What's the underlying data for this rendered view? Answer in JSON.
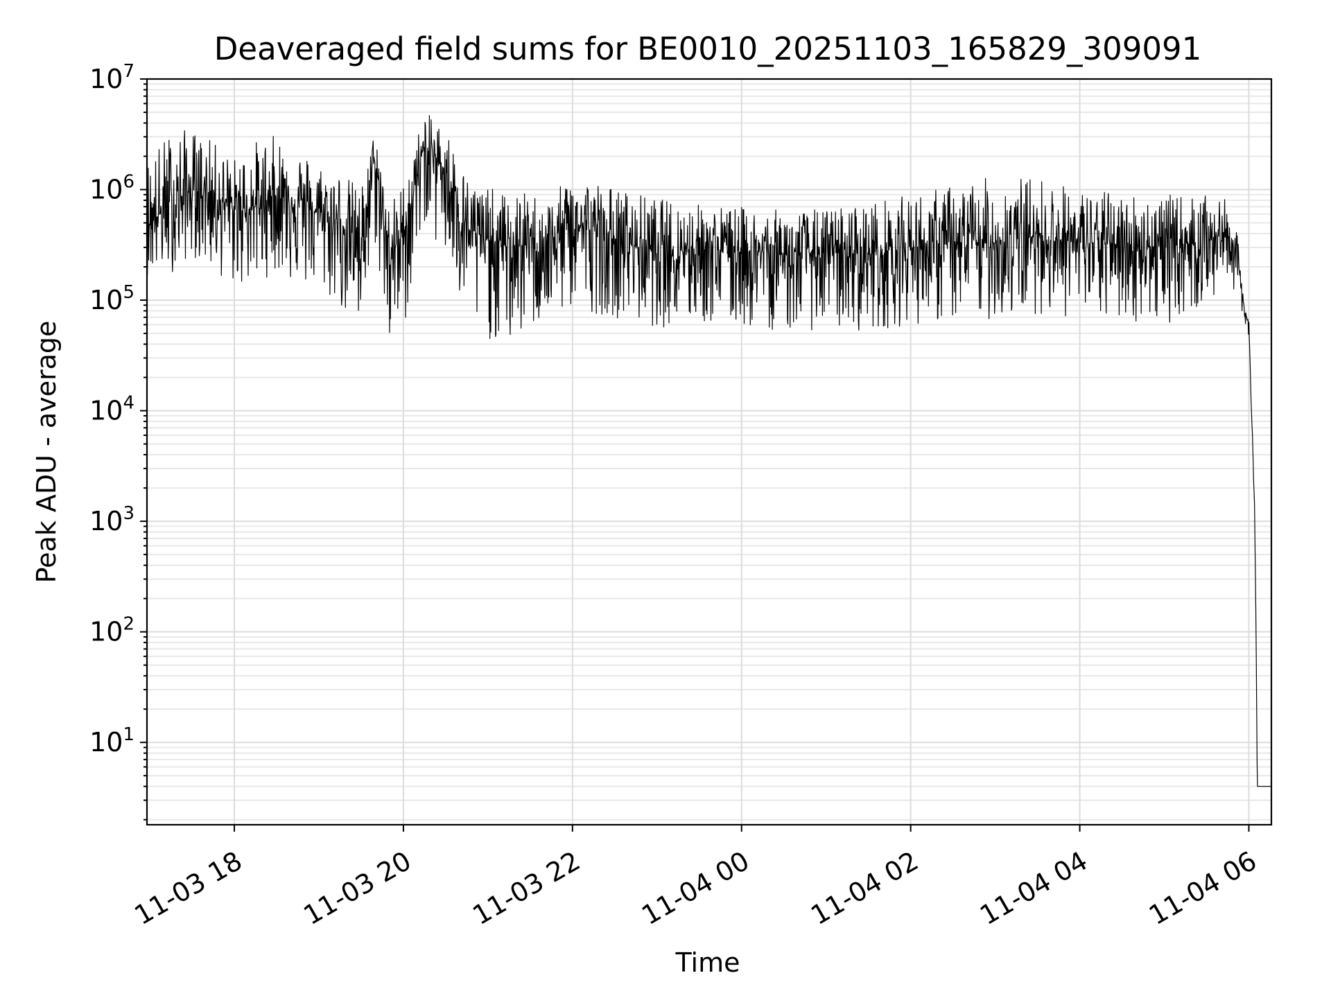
{
  "chart_data": {
    "type": "line",
    "title": "Deaveraged field sums for BE0010_20251103_165829_309091",
    "xlabel": "Time",
    "ylabel": "Peak ADU - average",
    "xscale": "time",
    "yscale": "log",
    "grid": "on (major and minor)",
    "xlim": [
      "2025-11-03 16:58",
      "2025-11-04 06:16"
    ],
    "ylim": [
      1.8,
      10000000
    ],
    "x_tick_labels": [
      "11-03 18",
      "11-03 20",
      "11-03 22",
      "11-04 00",
      "11-04 02",
      "11-04 04",
      "11-04 06"
    ],
    "y_tick_labels": [
      {
        "base": "10",
        "exp": "1"
      },
      {
        "base": "10",
        "exp": "2"
      },
      {
        "base": "10",
        "exp": "3"
      },
      {
        "base": "10",
        "exp": "4"
      },
      {
        "base": "10",
        "exp": "5"
      },
      {
        "base": "10",
        "exp": "6"
      },
      {
        "base": "10",
        "exp": "7"
      }
    ],
    "series": [
      {
        "color": "#000000",
        "x": [
          "2025-11-03 16:58",
          "2025-11-03 17:15",
          "2025-11-03 17:30",
          "2025-11-03 17:45",
          "2025-11-03 18:00",
          "2025-11-03 18:15",
          "2025-11-03 18:30",
          "2025-11-03 18:45",
          "2025-11-03 19:00",
          "2025-11-03 19:15",
          "2025-11-03 19:30",
          "2025-11-03 19:40",
          "2025-11-03 19:50",
          "2025-11-03 20:00",
          "2025-11-03 20:15",
          "2025-11-03 20:30",
          "2025-11-03 20:45",
          "2025-11-03 21:00",
          "2025-11-03 21:15",
          "2025-11-03 21:30",
          "2025-11-03 21:45",
          "2025-11-03 22:00",
          "2025-11-03 22:30",
          "2025-11-03 23:00",
          "2025-11-03 23:30",
          "2025-11-04 00:00",
          "2025-11-04 00:30",
          "2025-11-04 01:00",
          "2025-11-04 01:30",
          "2025-11-04 02:00",
          "2025-11-04 02:30",
          "2025-11-04 03:00",
          "2025-11-04 03:30",
          "2025-11-04 04:00",
          "2025-11-04 04:30",
          "2025-11-04 05:00",
          "2025-11-04 05:30",
          "2025-11-04 05:45",
          "2025-11-04 05:52",
          "2025-11-04 05:56",
          "2025-11-04 06:00",
          "2025-11-04 06:02",
          "2025-11-04 06:04",
          "2025-11-04 06:05",
          "2025-11-04 06:06",
          "2025-11-04 06:10",
          "2025-11-04 06:16"
        ],
        "y": [
          500000,
          700000,
          1000000,
          900000,
          650000,
          700000,
          900000,
          800000,
          600000,
          500000,
          350000,
          1800000,
          250000,
          400000,
          2500000,
          1500000,
          450000,
          350000,
          300000,
          320000,
          330000,
          500000,
          350000,
          280000,
          300000,
          280000,
          260000,
          270000,
          260000,
          300000,
          320000,
          330000,
          380000,
          330000,
          320000,
          300000,
          350000,
          400000,
          250000,
          90000,
          60000,
          10000,
          1500,
          150,
          4,
          4,
          4
        ],
        "spread_high": [
          4,
          5,
          3.5,
          3,
          3,
          4,
          3.5,
          3,
          3,
          3,
          3,
          2,
          3,
          3,
          2,
          2.5,
          3,
          3,
          3,
          3,
          2.5,
          3,
          3,
          3,
          2.5,
          2.5,
          2.5,
          2.5,
          3,
          3,
          3.5,
          4,
          3.5,
          3,
          3,
          3,
          2.5,
          2,
          1.5,
          1.2,
          1.2,
          1,
          1,
          1,
          1,
          1,
          1
        ],
        "spread_low": [
          3,
          4,
          4,
          5,
          5,
          5,
          5,
          6,
          5,
          6,
          8,
          6,
          7,
          8,
          5,
          7,
          8,
          8,
          8,
          6,
          5,
          6,
          5,
          5,
          5,
          5,
          5,
          5,
          5,
          5,
          5,
          5,
          5,
          5,
          5,
          5,
          4,
          3,
          2,
          1.6,
          1.6,
          1.2,
          1.2,
          1,
          1,
          1,
          1
        ]
      }
    ]
  }
}
